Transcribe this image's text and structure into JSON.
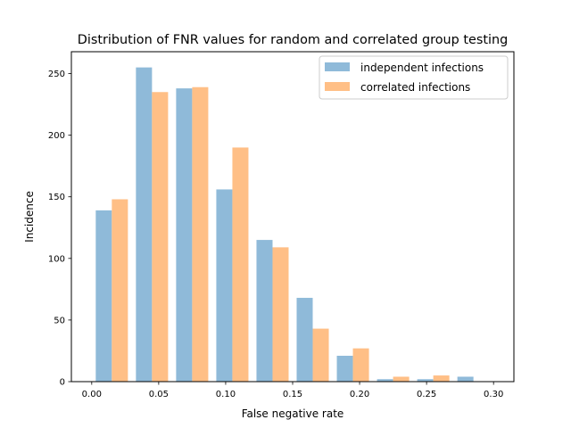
{
  "chart_data": {
    "type": "bar",
    "title": "Distribution of FNR values for random and correlated group testing",
    "xlabel": "False negative rate",
    "ylabel": "Incidence",
    "xlim": [
      -0.0152,
      0.3152
    ],
    "ylim": [
      0,
      267.75
    ],
    "xticks": [
      0.0,
      0.05,
      0.1,
      0.15,
      0.2,
      0.25,
      0.3
    ],
    "xtick_labels": [
      "0.00",
      "0.05",
      "0.10",
      "0.15",
      "0.20",
      "0.25",
      "0.30"
    ],
    "yticks": [
      0,
      50,
      100,
      150,
      200,
      250
    ],
    "ytick_labels": [
      "0",
      "50",
      "100",
      "150",
      "200",
      "250"
    ],
    "bin_edges": [
      0.0,
      0.03,
      0.06,
      0.09,
      0.12,
      0.15,
      0.18,
      0.21,
      0.24,
      0.27,
      0.3
    ],
    "grid": false,
    "legend_position": "top-right",
    "series": [
      {
        "name": "independent infections",
        "color": "#8fbad9",
        "values": [
          139,
          255,
          238,
          156,
          115,
          68,
          21,
          2,
          2,
          4
        ]
      },
      {
        "name": "correlated infections",
        "color": "#ffbf86",
        "values": [
          148,
          235,
          239,
          190,
          109,
          43,
          27,
          4,
          5,
          0
        ]
      }
    ]
  }
}
